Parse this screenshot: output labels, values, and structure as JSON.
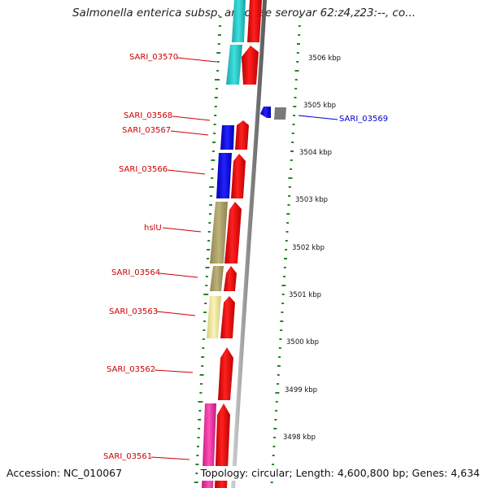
{
  "title": "Salmonella enterica subsp. arizonae serovar 62:z4,z23:--, co...",
  "footer": {
    "accession": "Accession: NC_010067",
    "summary": "Topology: circular; Length: 4,600,800 bp; Genes: 4,634"
  },
  "ruler": {
    "ticks": [
      "3506 kbp",
      "3505 kbp",
      "3504 kbp",
      "3503 kbp",
      "3502 kbp",
      "3501 kbp",
      "3500 kbp",
      "3499 kbp",
      "3498 kbp"
    ]
  },
  "genes": [
    {
      "name": "SARI_03570",
      "color": "#cc0000"
    },
    {
      "name": "SARI_03568",
      "color": "#cc0000"
    },
    {
      "name": "SARI_03567",
      "color": "#cc0000"
    },
    {
      "name": "SARI_03566",
      "color": "#cc0000"
    },
    {
      "name": "hslU",
      "color": "#cc0000"
    },
    {
      "name": "SARI_03564",
      "color": "#cc0000"
    },
    {
      "name": "SARI_03563",
      "color": "#cc0000"
    },
    {
      "name": "SARI_03562",
      "color": "#cc0000"
    },
    {
      "name": "SARI_03561",
      "color": "#cc0000"
    },
    {
      "name": "SARI_03569",
      "color": "#0000cc"
    }
  ],
  "colors": {
    "forward_cds": "#ee0000",
    "reverse_cds": "#0000ee",
    "cog_cyan": "#22cccc",
    "cog_blue": "#1111dd",
    "cog_olive": "#aa9f60",
    "cog_yellow": "#efe39a",
    "cog_magenta": "#ee2a9a",
    "backbone": "#888888",
    "gc_dots": "#228822"
  }
}
